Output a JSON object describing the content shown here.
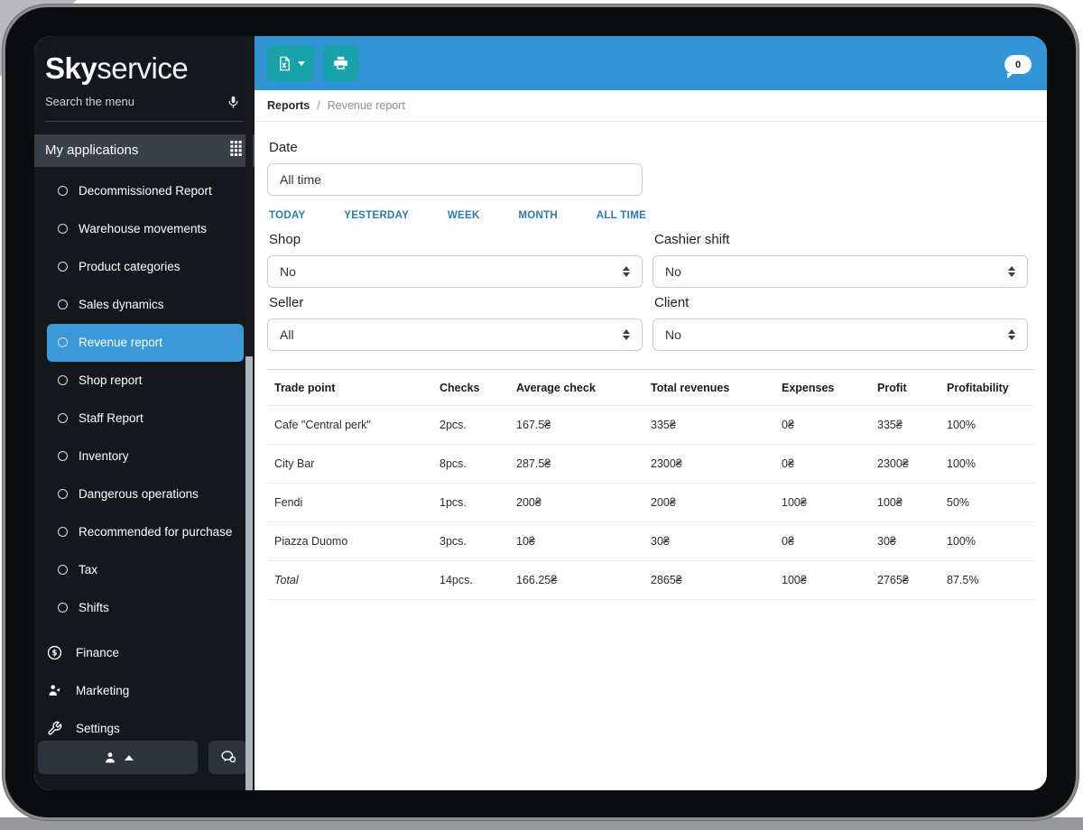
{
  "sidebar": {
    "logo_bold": "Sky",
    "logo_light": "service",
    "search_placeholder": "Search the menu",
    "apps_header": "My applications",
    "menu_items": [
      {
        "label": "Decommissioned Report",
        "active": false
      },
      {
        "label": "Warehouse movements",
        "active": false
      },
      {
        "label": "Product categories",
        "active": false
      },
      {
        "label": "Sales dynamics",
        "active": false
      },
      {
        "label": "Revenue report",
        "active": true
      },
      {
        "label": "Shop report",
        "active": false
      },
      {
        "label": "Staff Report",
        "active": false
      },
      {
        "label": "Inventory",
        "active": false
      },
      {
        "label": "Dangerous operations",
        "active": false
      },
      {
        "label": "Recommended for purchase",
        "active": false
      },
      {
        "label": "Tax",
        "active": false
      },
      {
        "label": "Shifts",
        "active": false
      }
    ],
    "sections": [
      {
        "label": "Finance",
        "icon": "dollar-circle-icon"
      },
      {
        "label": "Marketing",
        "icon": "marketing-person-icon"
      },
      {
        "label": "Settings",
        "icon": "wrench-icon"
      }
    ]
  },
  "toolbar": {
    "export_icon": "excel-file-icon",
    "print_icon": "printer-icon",
    "badge_count": "0"
  },
  "breadcrumb": {
    "section": "Reports",
    "separator": "/",
    "page": "Revenue report"
  },
  "filters": {
    "date": {
      "label": "Date",
      "value": "All time",
      "quick_links": [
        "TODAY",
        "YESTERDAY",
        "WEEK",
        "MONTH",
        "ALL TIME"
      ]
    },
    "shop": {
      "label": "Shop",
      "value": "No"
    },
    "cashier_shift": {
      "label": "Cashier shift",
      "value": "No"
    },
    "seller": {
      "label": "Seller",
      "value": "All"
    },
    "client": {
      "label": "Client",
      "value": "No"
    }
  },
  "table": {
    "columns": [
      "Trade point",
      "Checks",
      "Average check",
      "Total revenues",
      "Expenses",
      "Profit",
      "Profitability"
    ],
    "rows": [
      [
        "Cafe \"Central perk\"",
        "2pcs.",
        "167.5₴",
        "335₴",
        "0₴",
        "335₴",
        "100%"
      ],
      [
        "City Bar",
        "8pcs.",
        "287.5₴",
        "2300₴",
        "0₴",
        "2300₴",
        "100%"
      ],
      [
        "Fendi",
        "1pcs.",
        "200₴",
        "200₴",
        "100₴",
        "100₴",
        "50%"
      ],
      [
        "Piazza Duomo",
        "3pcs.",
        "10₴",
        "30₴",
        "0₴",
        "30₴",
        "100%"
      ]
    ],
    "total_row": [
      "Total",
      "14pcs.",
      "166.25₴",
      "2865₴",
      "100₴",
      "2765₴",
      "87.5%"
    ]
  },
  "colors": {
    "toolbar_blue": "#3294d5",
    "button_teal": "#18a2a9",
    "active_item_blue": "#3b99d9",
    "quick_link_blue": "#2a7cb4",
    "sidebar_bg": "#14171b"
  }
}
